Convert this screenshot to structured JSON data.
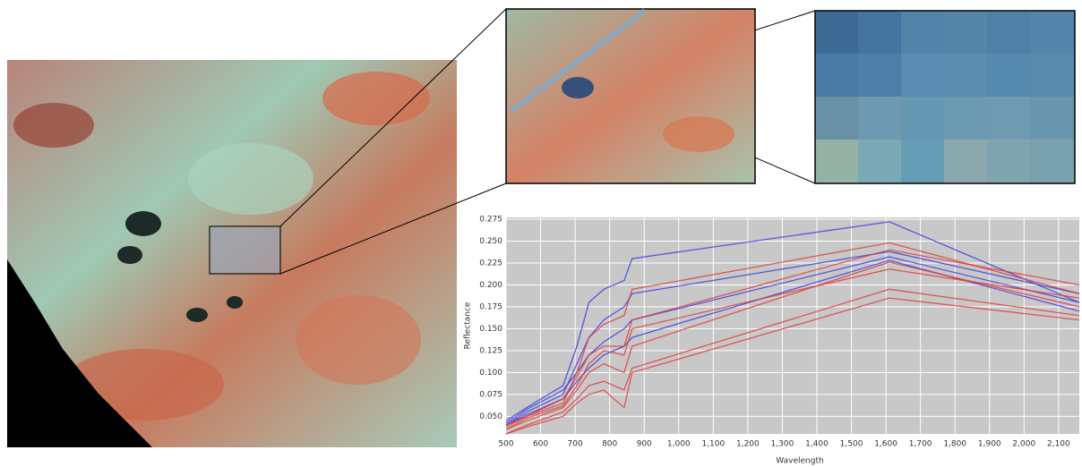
{
  "chart_data": {
    "type": "line",
    "xlabel": "Wavelength",
    "ylabel": "Reflectance",
    "x": [
      500,
      560,
      665,
      705,
      740,
      783,
      842,
      865,
      1610,
      2160
    ],
    "xlim": [
      500,
      2160
    ],
    "xticks": [
      500,
      600,
      700,
      800,
      900,
      {
        "value": 1000,
        "label": "1,000"
      },
      {
        "value": 1100,
        "label": "1,100"
      },
      {
        "value": 1200,
        "label": "1,200"
      },
      {
        "value": 1300,
        "label": "1,300"
      },
      {
        "value": 1400,
        "label": "1,400"
      },
      {
        "value": 1500,
        "label": "1,500"
      },
      {
        "value": 1600,
        "label": "1,600"
      },
      {
        "value": 1700,
        "label": "1,700"
      },
      {
        "value": 1800,
        "label": "1,800"
      },
      {
        "value": 1900,
        "label": "1,900"
      },
      {
        "value": 2000,
        "label": "2,000"
      },
      {
        "value": 2100,
        "label": "2,100"
      }
    ],
    "ylim": [
      0.03,
      0.277
    ],
    "yticks": [
      {
        "value": 0.05,
        "label": "0.050"
      },
      0.075,
      {
        "value": 0.1,
        "label": "0.100"
      },
      0.125,
      {
        "value": 0.15,
        "label": "0.150"
      },
      0.175,
      {
        "value": 0.2,
        "label": "0.200"
      },
      0.225,
      {
        "value": 0.25,
        "label": "0.250"
      },
      0.275
    ],
    "grid": true,
    "series": [
      {
        "color": "#3a3ae0",
        "values": [
          0.045,
          0.06,
          0.085,
          0.13,
          0.18,
          0.195,
          0.205,
          0.23,
          0.272,
          0.18
        ]
      },
      {
        "color": "#3a3ae0",
        "values": [
          0.04,
          0.055,
          0.075,
          0.11,
          0.14,
          0.16,
          0.175,
          0.19,
          0.238,
          0.19
        ]
      },
      {
        "color": "#3a3ae0",
        "values": [
          0.042,
          0.058,
          0.08,
          0.1,
          0.12,
          0.135,
          0.15,
          0.16,
          0.232,
          0.18
        ]
      },
      {
        "color": "#3a3ae0",
        "values": [
          0.04,
          0.052,
          0.07,
          0.09,
          0.105,
          0.12,
          0.13,
          0.14,
          0.228,
          0.17
        ]
      },
      {
        "color": "#e03a3a",
        "values": [
          0.04,
          0.05,
          0.065,
          0.1,
          0.14,
          0.155,
          0.165,
          0.195,
          0.248,
          0.19
        ]
      },
      {
        "color": "#e03a3a",
        "values": [
          0.035,
          0.045,
          0.06,
          0.08,
          0.1,
          0.11,
          0.1,
          0.13,
          0.226,
          0.175
        ]
      },
      {
        "color": "#e03a3a",
        "values": [
          0.03,
          0.04,
          0.055,
          0.07,
          0.085,
          0.09,
          0.08,
          0.105,
          0.195,
          0.165
        ]
      },
      {
        "color": "#e03a3a",
        "values": [
          0.03,
          0.038,
          0.05,
          0.065,
          0.075,
          0.08,
          0.06,
          0.1,
          0.185,
          0.16
        ]
      },
      {
        "color": "#e03a3a",
        "values": [
          0.038,
          0.05,
          0.07,
          0.095,
          0.12,
          0.13,
          0.13,
          0.16,
          0.24,
          0.2
        ]
      },
      {
        "color": "#e03a3a",
        "values": [
          0.035,
          0.048,
          0.062,
          0.085,
          0.11,
          0.125,
          0.12,
          0.15,
          0.218,
          0.185
        ]
      }
    ]
  }
}
